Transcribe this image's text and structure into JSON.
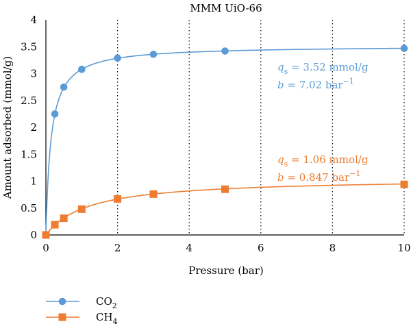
{
  "chart_data": {
    "type": "line",
    "title": "MMM UiO-66",
    "xlabel": "Pressure (bar)",
    "ylabel": "Amount adsorbed (mmol/g)",
    "xlim": [
      0,
      10
    ],
    "ylim": [
      0,
      4
    ],
    "x_ticks": [
      0,
      2,
      4,
      6,
      8,
      10
    ],
    "y_ticks": [
      0,
      0.5,
      1,
      1.5,
      2,
      2.5,
      3,
      3.5,
      4
    ],
    "x_tick_labels": [
      "0",
      "2",
      "4",
      "6",
      "8",
      "10"
    ],
    "y_tick_labels": [
      "0",
      "0.5",
      "1",
      "1.5",
      "2",
      "2.5",
      "3",
      "3.5",
      "4"
    ],
    "grid": "vertical-dotted",
    "legend_position": "bottom-left",
    "series": [
      {
        "name": "CO2",
        "name_base": "CO",
        "name_sub": "2",
        "color": "#5B9BD5",
        "marker": "circle",
        "x": [
          0,
          0.25,
          0.5,
          1,
          2,
          3,
          5,
          10
        ],
        "y": [
          0.0,
          2.25,
          2.75,
          3.08,
          3.29,
          3.36,
          3.42,
          3.47
        ],
        "fit": {
          "qs": 3.52,
          "b": 7.02
        },
        "annotation": {
          "q_symbol": "q",
          "q_sub": "s",
          "q_value": " = 3.52 mmol/g",
          "b_symbol": "b",
          "b_value": " = 7.02 bar",
          "b_exp": "−1"
        }
      },
      {
        "name": "CH4",
        "name_base": "CH",
        "name_sub": "4",
        "color": "#ED7D31",
        "marker": "square",
        "x": [
          0,
          0.25,
          0.5,
          1,
          2,
          3,
          5,
          10
        ],
        "y": [
          0.0,
          0.19,
          0.31,
          0.48,
          0.67,
          0.76,
          0.85,
          0.94
        ],
        "fit": {
          "qs": 1.06,
          "b": 0.847
        },
        "annotation": {
          "q_symbol": "q",
          "q_sub": "s",
          "q_value": " = 1.06 mmol/g",
          "b_symbol": "b",
          "b_value": " = 0.847 bar",
          "b_exp": "−1"
        }
      }
    ]
  }
}
